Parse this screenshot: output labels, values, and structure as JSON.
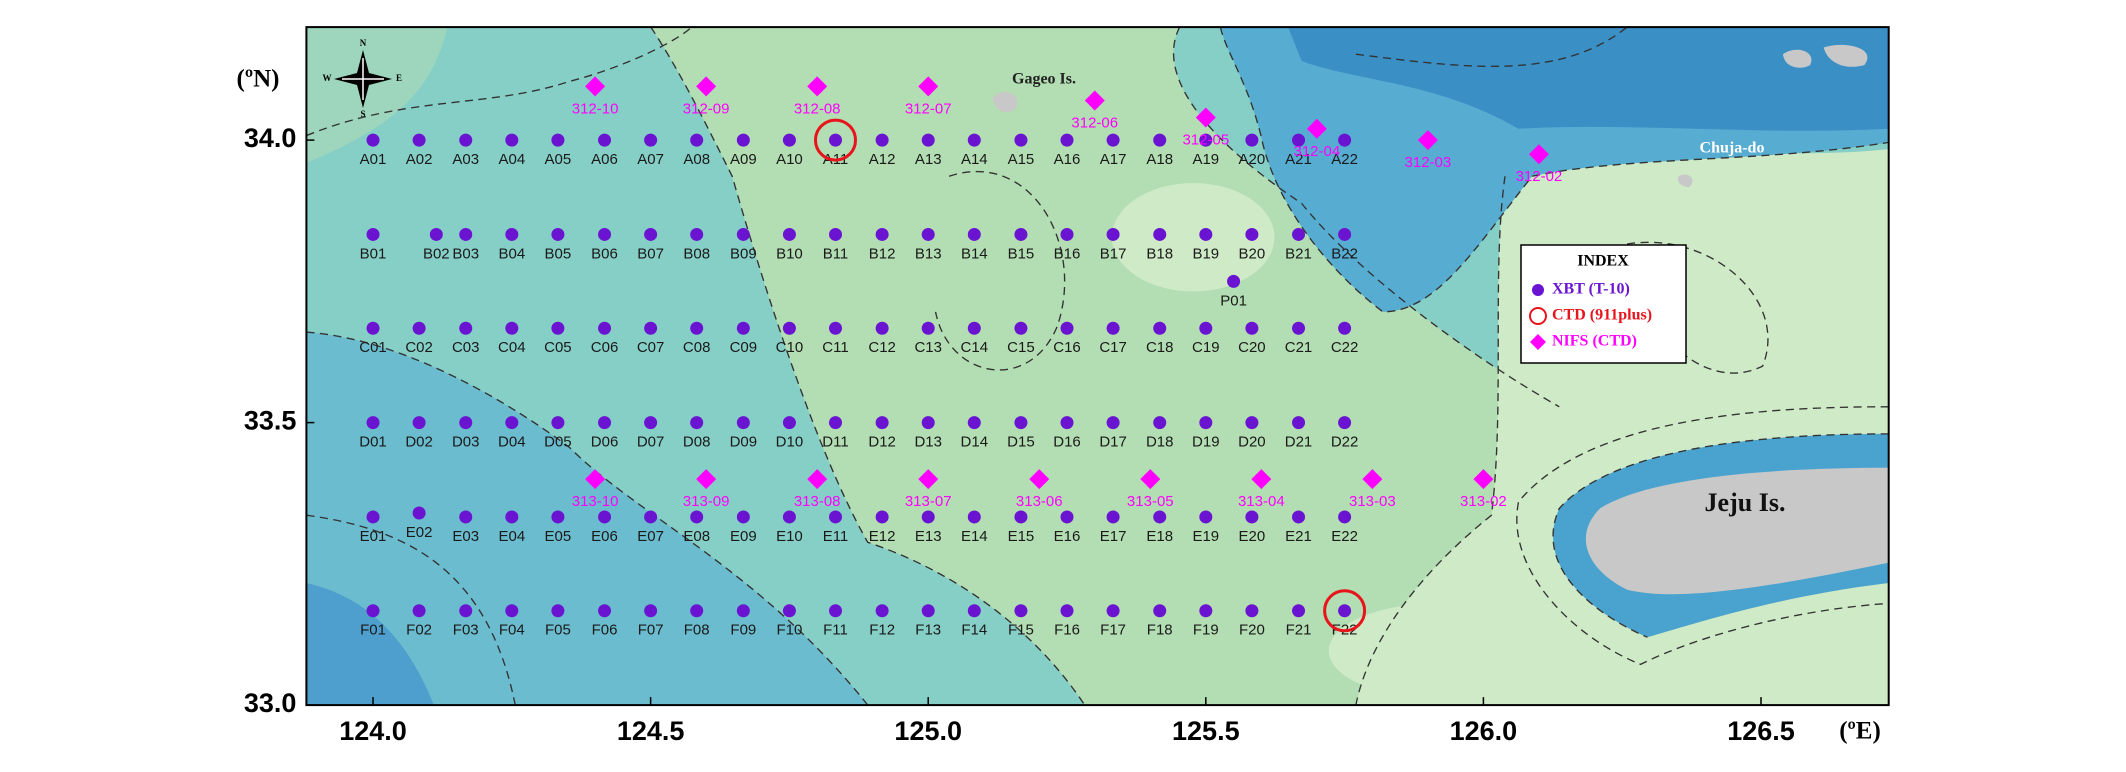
{
  "chart_data": {
    "type": "scatter",
    "y_label": "(ºN)",
    "x_label": "(ºE)",
    "legend_title": "INDEX",
    "compass": [
      "N",
      "E",
      "S",
      "W"
    ],
    "annotations": [
      "Gageo Is.",
      "Chuja-do",
      "Jeju Is."
    ],
    "xlim": [
      123.88,
      126.73
    ],
    "ylim": [
      33.0,
      34.2
    ],
    "xticks": [
      {
        "value": 124,
        "label": "124.0"
      },
      124.5,
      {
        "value": 125,
        "label": "125.0"
      },
      125.5,
      {
        "value": 126,
        "label": "126.0"
      },
      126.5
    ],
    "yticks": [
      {
        "value": 33,
        "label": "33.0"
      },
      33.5,
      {
        "value": 34,
        "label": "34.0"
      }
    ],
    "series": [
      {
        "name": "XBT (T-10)",
        "color": "#6a14d2",
        "marker": "circle",
        "labels": [
          "A01",
          "A02",
          "A03",
          "A04",
          "A05",
          "A06",
          "A07",
          "A08",
          "A09",
          "A10",
          "A11",
          "A12",
          "A13",
          "A14",
          "A15",
          "A16",
          "A17",
          "A18",
          "A19",
          "A20",
          "A21",
          "A22",
          "B01",
          "B02",
          "B03",
          "B04",
          "B05",
          "B06",
          "B07",
          "B08",
          "B09",
          "B10",
          "B11",
          "B12",
          "B13",
          "B14",
          "B15",
          "B16",
          "B17",
          "B18",
          "B19",
          "B20",
          "B21",
          "B22",
          "C01",
          "C02",
          "C03",
          "C04",
          "C05",
          "C06",
          "C07",
          "C08",
          "C09",
          "C10",
          "C11",
          "C12",
          "C13",
          "C14",
          "C15",
          "C16",
          "C17",
          "C18",
          "C19",
          "C20",
          "C21",
          "C22",
          "D01",
          "D02",
          "D03",
          "D04",
          "D05",
          "D06",
          "D07",
          "D08",
          "D09",
          "D10",
          "D11",
          "D12",
          "D13",
          "D14",
          "D15",
          "D16",
          "D17",
          "D18",
          "D19",
          "D20",
          "D21",
          "D22",
          "E01",
          "E02",
          "E03",
          "E04",
          "E05",
          "E06",
          "E07",
          "E08",
          "E09",
          "E10",
          "E11",
          "E12",
          "E13",
          "E14",
          "E15",
          "E16",
          "E17",
          "E18",
          "E19",
          "E20",
          "E21",
          "E22",
          "F01",
          "F02",
          "F03",
          "F04",
          "F05",
          "F06",
          "F07",
          "F08",
          "F09",
          "F10",
          "F11",
          "F12",
          "F13",
          "F14",
          "F15",
          "F16",
          "F17",
          "F18",
          "F19",
          "F20",
          "F21",
          "F22",
          "P01"
        ],
        "x": [
          124.0,
          124.083,
          124.167,
          124.25,
          124.333,
          124.417,
          124.5,
          124.583,
          124.667,
          124.75,
          124.833,
          124.917,
          125.0,
          125.083,
          125.167,
          125.25,
          125.333,
          125.417,
          125.5,
          125.583,
          125.667,
          125.75,
          124.0,
          124.114,
          124.167,
          124.25,
          124.333,
          124.417,
          124.5,
          124.583,
          124.667,
          124.75,
          124.833,
          124.917,
          125.0,
          125.083,
          125.167,
          125.25,
          125.333,
          125.417,
          125.5,
          125.583,
          125.667,
          125.75,
          124.0,
          124.083,
          124.167,
          124.25,
          124.333,
          124.417,
          124.5,
          124.583,
          124.667,
          124.75,
          124.833,
          124.917,
          125.0,
          125.083,
          125.167,
          125.25,
          125.333,
          125.417,
          125.5,
          125.583,
          125.667,
          125.75,
          124.0,
          124.083,
          124.167,
          124.25,
          124.333,
          124.417,
          124.5,
          124.583,
          124.667,
          124.75,
          124.833,
          124.917,
          125.0,
          125.083,
          125.167,
          125.25,
          125.333,
          125.417,
          125.5,
          125.583,
          125.667,
          125.75,
          124.0,
          124.083,
          124.167,
          124.25,
          124.333,
          124.417,
          124.5,
          124.583,
          124.667,
          124.75,
          124.833,
          124.917,
          125.0,
          125.083,
          125.167,
          125.25,
          125.333,
          125.417,
          125.5,
          125.583,
          125.667,
          125.75,
          124.0,
          124.083,
          124.167,
          124.25,
          124.333,
          124.417,
          124.5,
          124.583,
          124.667,
          124.75,
          124.833,
          124.917,
          125.0,
          125.083,
          125.167,
          125.25,
          125.333,
          125.417,
          125.5,
          125.583,
          125.667,
          125.75,
          125.55
        ],
        "y": [
          34.0,
          34.0,
          34.0,
          34.0,
          34.0,
          34.0,
          34.0,
          34.0,
          34.0,
          34.0,
          34.0,
          34.0,
          34.0,
          34.0,
          34.0,
          34.0,
          34.0,
          34.0,
          34.0,
          34.0,
          34.0,
          34.0,
          33.833,
          33.833,
          33.833,
          33.833,
          33.833,
          33.833,
          33.833,
          33.833,
          33.833,
          33.833,
          33.833,
          33.833,
          33.833,
          33.833,
          33.833,
          33.833,
          33.833,
          33.833,
          33.833,
          33.833,
          33.833,
          33.833,
          33.667,
          33.667,
          33.667,
          33.667,
          33.667,
          33.667,
          33.667,
          33.667,
          33.667,
          33.667,
          33.667,
          33.667,
          33.667,
          33.667,
          33.667,
          33.667,
          33.667,
          33.667,
          33.667,
          33.667,
          33.667,
          33.667,
          33.5,
          33.5,
          33.5,
          33.5,
          33.5,
          33.5,
          33.5,
          33.5,
          33.5,
          33.5,
          33.5,
          33.5,
          33.5,
          33.5,
          33.5,
          33.5,
          33.5,
          33.5,
          33.5,
          33.5,
          33.5,
          33.5,
          33.333,
          33.34,
          33.333,
          33.333,
          33.333,
          33.333,
          33.333,
          33.333,
          33.333,
          33.333,
          33.333,
          33.333,
          33.333,
          33.333,
          33.333,
          33.333,
          33.333,
          33.333,
          33.333,
          33.333,
          33.333,
          33.333,
          33.167,
          33.167,
          33.167,
          33.167,
          33.167,
          33.167,
          33.167,
          33.167,
          33.167,
          33.167,
          33.167,
          33.167,
          33.167,
          33.167,
          33.167,
          33.167,
          33.167,
          33.167,
          33.167,
          33.167,
          33.167,
          33.167,
          33.75
        ]
      },
      {
        "name": "CTD (911plus)",
        "color": "#e8141c",
        "marker": "ring",
        "x": [
          124.833,
          125.75
        ],
        "y": [
          34.0,
          33.167
        ]
      },
      {
        "name": "NIFS (CTD)",
        "color": "#ff00ff",
        "marker": "diamond",
        "labels": [
          "312-10",
          "312-09",
          "312-08",
          "312-07",
          "312-06",
          "312-05",
          "312-04",
          "312-03",
          "312-02",
          "313-10",
          "313-09",
          "313-08",
          "313-07",
          "313-06",
          "313-05",
          "313-04",
          "313-03",
          "313-02"
        ],
        "x": [
          124.4,
          124.6,
          124.8,
          125.0,
          125.3,
          125.5,
          125.7,
          125.9,
          126.1,
          124.4,
          124.6,
          124.8,
          125.0,
          125.2,
          125.4,
          125.6,
          125.8,
          126.0
        ],
        "y": [
          34.095,
          34.095,
          34.095,
          34.095,
          34.07,
          34.04,
          34.02,
          34.0,
          33.975,
          33.4,
          33.4,
          33.4,
          33.4,
          33.4,
          33.4,
          33.4,
          33.4,
          33.4
        ]
      }
    ]
  }
}
